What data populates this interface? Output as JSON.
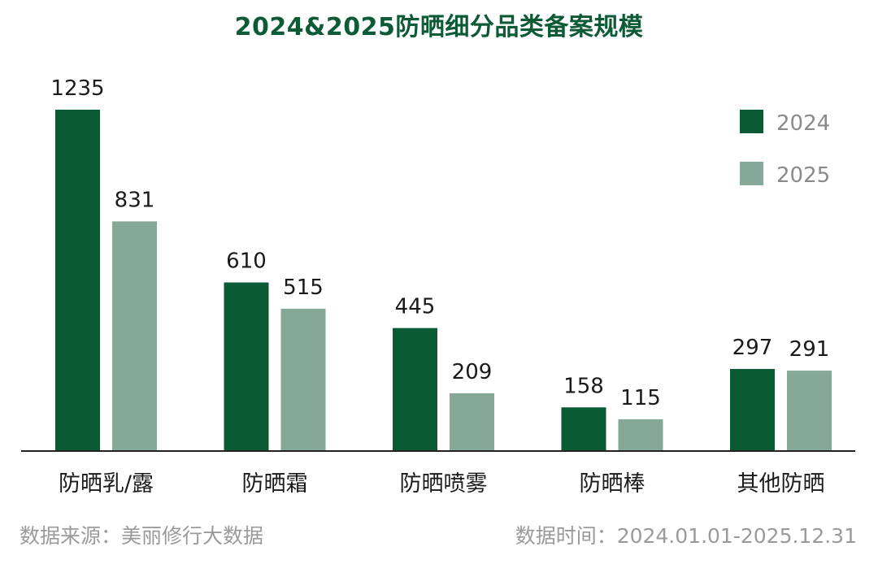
{
  "chart_data": {
    "type": "bar",
    "title": "2024&2025防晒细分品类备案规模",
    "categories": [
      "防晒乳/露",
      "防晒霜",
      "防晒喷雾",
      "防晒棒",
      "其他防晒"
    ],
    "series": [
      {
        "name": "2024",
        "values": [
          1235,
          610,
          445,
          158,
          297
        ],
        "color": "#0b5a36"
      },
      {
        "name": "2025",
        "values": [
          831,
          515,
          209,
          115,
          291
        ],
        "color": "#86a899"
      }
    ],
    "ylim": [
      0,
      1235
    ],
    "grid": false,
    "legend_position": "top-right",
    "data_labels": true
  },
  "footer": {
    "source": "数据来源：美丽修行大数据",
    "period": "数据时间：2024.01.01-2025.12.31"
  }
}
